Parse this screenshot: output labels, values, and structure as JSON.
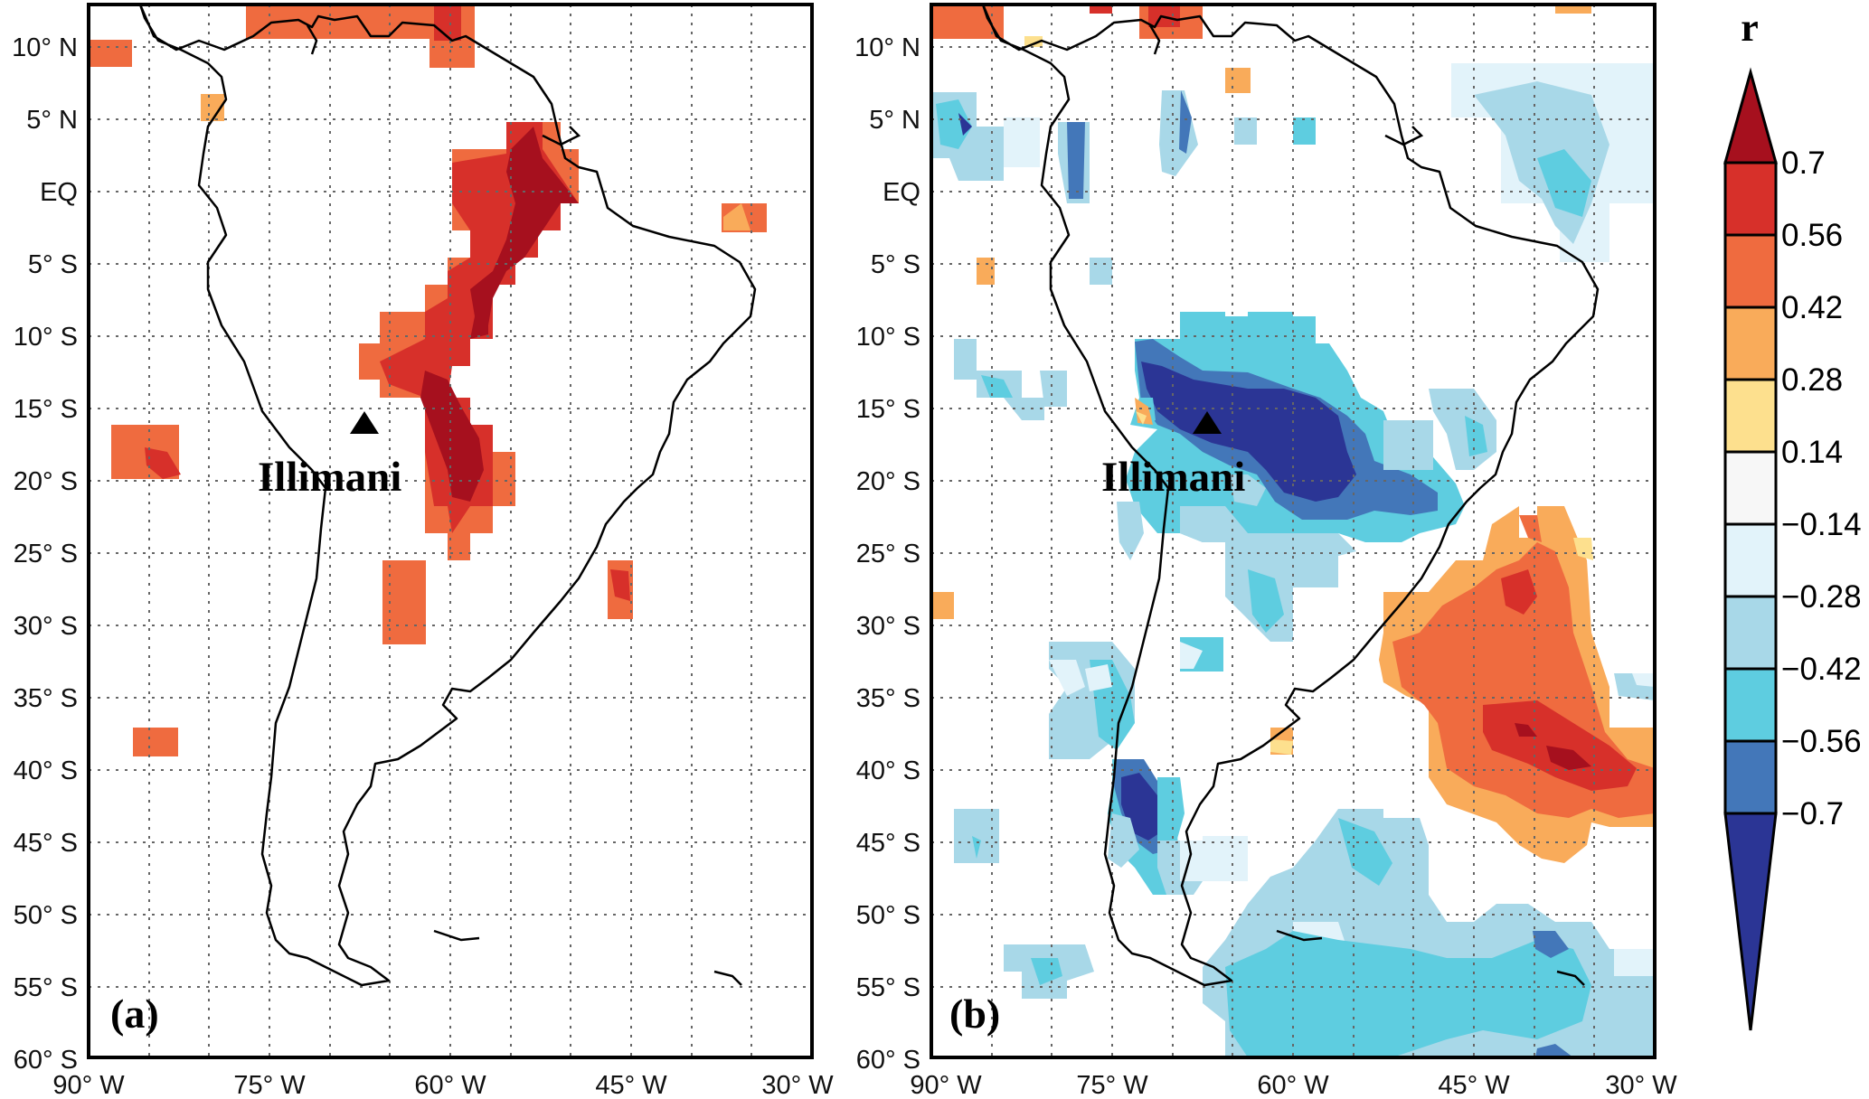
{
  "figure": {
    "x_ticks": [
      "90° W",
      "75° W",
      "60° W",
      "45° W",
      "30° W"
    ],
    "y_ticks": [
      "10° N",
      "5° N",
      "EQ",
      "5° S",
      "10° S",
      "15° S",
      "20° S",
      "25° S",
      "30° S",
      "35° S",
      "40° S",
      "45° S",
      "50° S",
      "55° S",
      "60° S"
    ],
    "site_label": "Illimani",
    "panels": [
      {
        "label": "(a)",
        "description": "Positive correlation field"
      },
      {
        "label": "(b)",
        "description": "Correlation field with negative core near the site"
      }
    ],
    "colorbar": {
      "title": "r",
      "levels": [
        "0.7",
        "0.56",
        "0.42",
        "0.28",
        "0.14",
        "−0.14",
        "−0.28",
        "−0.42",
        "−0.56",
        "−0.7"
      ],
      "colors": {
        "gt_0_7": "#a6101e",
        "c_0_56_0_7": "#d7302a",
        "c_0_42_0_56": "#ef6b3f",
        "c_0_28_0_42": "#f9ab5a",
        "c_0_14_0_28": "#fde08e",
        "c_neg_0_14_0_14": "#f7f7f7",
        "c_neg_0_28_neg_0_14": "#e2f3fa",
        "c_neg_0_42_neg_0_28": "#a8d8e8",
        "c_neg_0_56_neg_0_42": "#5ecde0",
        "c_neg_0_7_neg_0_56": "#4377b9",
        "lt_neg_0_7": "#2b3595"
      }
    }
  }
}
